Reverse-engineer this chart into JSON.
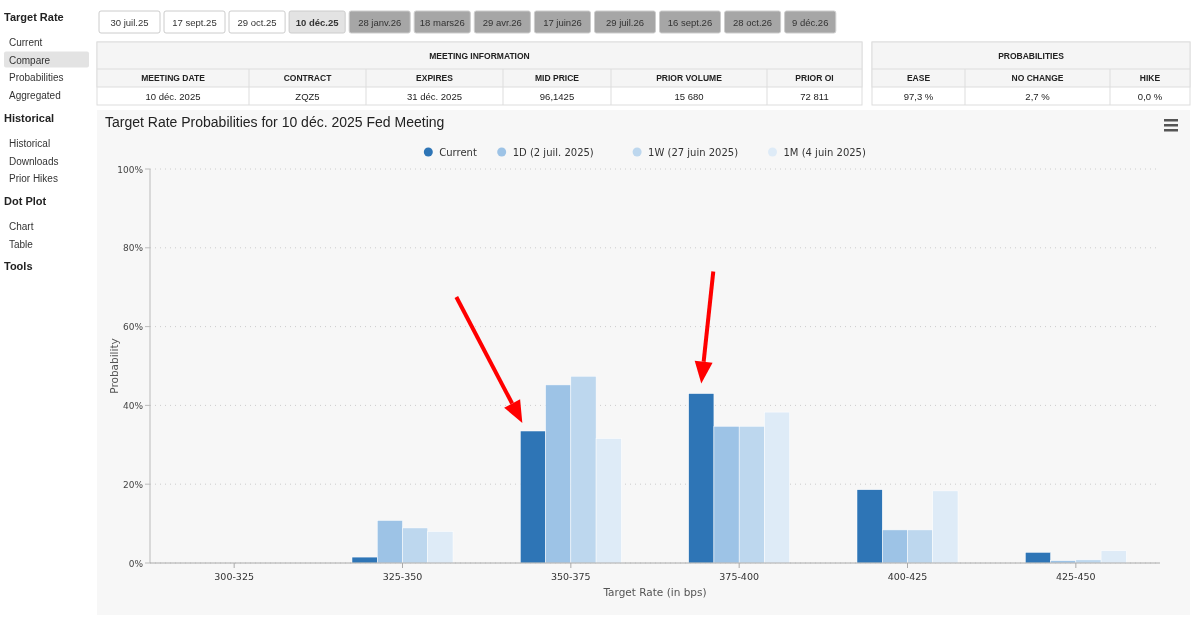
{
  "chart_data": [
    {
      "type": "other",
      "title": "Target Rate",
      "annotations": [
        "Current",
        "Compare",
        "Probabilities",
        "Aggregated"
      ],
      "colors": [
        null,
        "#e3e3e3",
        null,
        null
      ]
    },
    {
      "type": "other",
      "title": "Historical",
      "annotations": [
        "Historical",
        "Downloads",
        "Prior Hikes"
      ]
    },
    {
      "type": "other",
      "title": "Dot Plot",
      "annotations": [
        "Chart",
        "Table"
      ]
    },
    {
      "type": "other",
      "title": "Tools"
    },
    {
      "type": "other",
      "annotations": [
        "30 juil.25",
        "17 sept.25",
        "29 oct.25",
        "10 déc.25",
        "28 janv.26",
        "18 mars26",
        "29 avr.26",
        "17 juin26",
        "29 juil.26",
        "16 sept.26",
        "28 oct.26",
        "9 déc.26"
      ],
      "colors": [
        "#ffffff",
        "#ffffff",
        "#ffffff",
        "#e3e3e3",
        "#a6a6a6",
        "#a6a6a6",
        "#a6a6a6",
        "#a6a6a6",
        "#a6a6a6",
        "#a6a6a6",
        "#a6a6a6",
        "#a6a6a6"
      ]
    },
    {
      "type": "other",
      "title": "MEETING INFORMATION",
      "categories": [
        "MEETING DATE",
        "CONTRACT",
        "EXPIRES",
        "MID PRICE",
        "PRIOR VOLUME",
        "PRIOR OI"
      ],
      "annotations": [
        "10 déc. 2025",
        "ZQZ5",
        "31 déc. 2025",
        "96,1425",
        "15 680",
        "72 811"
      ]
    },
    {
      "type": "other",
      "title": "PROBABILITIES",
      "categories": [
        "EASE",
        "NO CHANGE",
        "HIKE"
      ],
      "annotations": [
        "97,3 %",
        "2,7 %",
        "0,0 %"
      ]
    },
    {
      "type": "bar",
      "title": "Target Rate Probabilities for 10 déc. 2025 Fed Meeting",
      "xlabel": "Target Rate (in bps)",
      "ylabel": "Probability",
      "categories": [
        "300-325",
        "325-350",
        "350-375",
        "375-400",
        "400-425",
        "425-450"
      ],
      "series": [
        {
          "name": "Current",
          "color": "#2e75b6",
          "values": [
            0,
            1.5,
            33.5,
            43.0,
            18.6,
            2.7
          ]
        },
        {
          "name": "1D (2 juil. 2025)",
          "color": "#9dc3e6",
          "values": [
            0,
            10.8,
            45.2,
            34.7,
            8.4,
            0.6
          ]
        },
        {
          "name": "1W (27 juin 2025)",
          "color": "#bdd7ee",
          "values": [
            0,
            8.9,
            47.4,
            34.7,
            8.4,
            0.8
          ]
        },
        {
          "name": "1M (4 juin 2025)",
          "color": "#deebf7",
          "values": [
            0,
            8.0,
            31.6,
            38.3,
            18.3,
            3.1
          ]
        }
      ],
      "ylim": [
        0,
        100
      ],
      "yticks": [
        {
          "value": 0,
          "label": "0%"
        },
        {
          "value": 20,
          "label": "20%"
        },
        {
          "value": 40,
          "label": "40%"
        },
        {
          "value": 60,
          "label": "60%"
        },
        {
          "value": 80,
          "label": "80%"
        },
        {
          "value": 100,
          "label": "100%"
        }
      ],
      "grid": "y",
      "legend": "top"
    }
  ]
}
